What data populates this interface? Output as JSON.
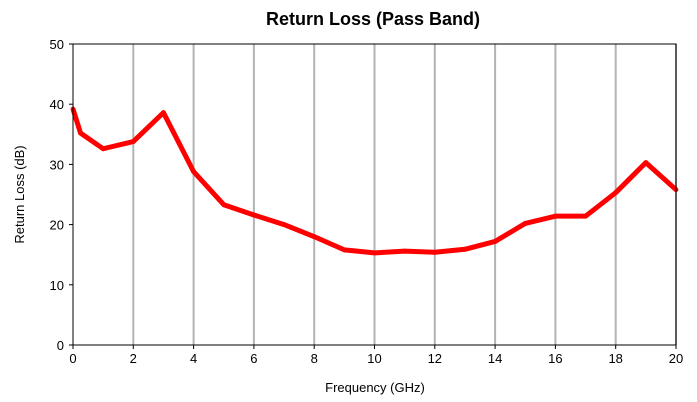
{
  "chart_data": {
    "type": "line",
    "title": "Return Loss (Pass Band)",
    "xlabel": "Frequency (GHz)",
    "ylabel": "Return Loss (dB)",
    "xlim": [
      0,
      20
    ],
    "ylim": [
      0,
      50
    ],
    "x_ticks": [
      0,
      2,
      4,
      6,
      8,
      10,
      12,
      14,
      16,
      18,
      20
    ],
    "y_ticks": [
      0,
      10,
      20,
      30,
      40,
      50
    ],
    "grid": {
      "vertical": true,
      "horizontal": false
    },
    "legend": "none",
    "series": [
      {
        "color": "#ff0000",
        "x": [
          0,
          0.25,
          1,
          2,
          3,
          4,
          5,
          6,
          7,
          8,
          9,
          10,
          11,
          12,
          13,
          14,
          15,
          16,
          17,
          18,
          19,
          20
        ],
        "y": [
          39.2,
          35.2,
          32.6,
          33.8,
          38.6,
          28.8,
          23.3,
          21.6,
          20.0,
          18.0,
          15.8,
          15.3,
          15.6,
          15.4,
          15.9,
          17.2,
          20.2,
          21.4,
          21.4,
          25.3,
          30.3,
          25.8
        ]
      }
    ]
  }
}
